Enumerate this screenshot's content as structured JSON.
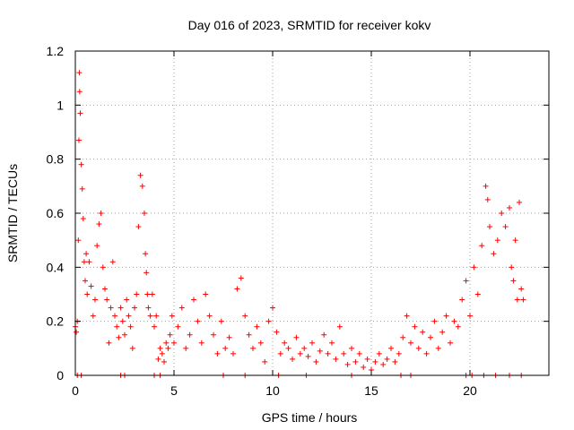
{
  "chart_data": {
    "type": "scatter",
    "title": "Day 016 of 2023, SRMTID for receiver kokv",
    "xlabel": "GPS time / hours",
    "ylabel": "SRMTID / TECUs",
    "xlim": [
      0,
      24
    ],
    "ylim": [
      0,
      1.2
    ],
    "xticks": [
      0,
      5,
      10,
      15,
      20
    ],
    "yticks": [
      0,
      0.2,
      0.4,
      0.6,
      0.8,
      1,
      1.2
    ],
    "ytick_labels": [
      "0",
      "0.2",
      "0.4",
      "0.6",
      "0.8",
      "1",
      "1.2"
    ],
    "grid": true,
    "marker": "+",
    "color": "#ff0000",
    "series": [
      {
        "name": "SRMTID",
        "x": [
          0.0,
          0.05,
          0.1,
          0.15,
          0.18,
          0.2,
          0.22,
          0.25,
          0.3,
          0.35,
          0.4,
          0.45,
          0.5,
          0.55,
          0.6,
          0.7,
          0.8,
          0.9,
          1.0,
          1.1,
          1.2,
          1.3,
          1.4,
          1.5,
          1.6,
          1.7,
          1.8,
          1.9,
          2.0,
          2.1,
          2.2,
          2.3,
          2.4,
          2.5,
          2.6,
          2.7,
          2.8,
          2.9,
          3.0,
          3.1,
          3.2,
          3.3,
          3.4,
          3.5,
          3.55,
          3.6,
          3.65,
          3.7,
          3.8,
          3.9,
          4.0,
          4.1,
          4.2,
          4.3,
          4.4,
          4.5,
          4.6,
          4.7,
          4.8,
          4.9,
          5.0,
          5.2,
          5.4,
          5.6,
          5.8,
          6.0,
          6.2,
          6.4,
          6.6,
          6.8,
          7.0,
          7.2,
          7.4,
          7.6,
          7.8,
          8.0,
          8.2,
          8.4,
          8.6,
          8.8,
          9.0,
          9.2,
          9.4,
          9.6,
          9.8,
          10.0,
          10.2,
          10.4,
          10.6,
          10.8,
          11.0,
          11.2,
          11.4,
          11.6,
          11.8,
          12.0,
          12.2,
          12.4,
          12.6,
          12.8,
          13.0,
          13.2,
          13.4,
          13.6,
          13.8,
          14.0,
          14.2,
          14.4,
          14.6,
          14.8,
          15.0,
          15.2,
          15.4,
          15.6,
          15.8,
          16.0,
          16.2,
          16.4,
          16.6,
          16.8,
          17.0,
          17.2,
          17.4,
          17.6,
          17.8,
          18.0,
          18.2,
          18.4,
          18.6,
          18.8,
          19.0,
          19.2,
          19.4,
          19.6,
          19.8,
          20.0,
          20.2,
          20.4,
          20.6,
          20.8,
          20.9,
          21.0,
          21.2,
          21.4,
          21.6,
          21.8,
          22.0,
          22.1,
          22.2,
          22.3,
          22.4,
          22.5,
          22.6,
          22.7,
          0.1,
          0.3,
          2.3,
          2.5,
          4.0,
          4.3,
          7.5,
          8.6,
          10.3,
          11.7,
          14.0,
          16.5,
          17.0,
          19.8,
          20.1,
          20.7,
          21.3,
          22.0,
          22.6
        ],
        "values": [
          0.18,
          0.16,
          0.2,
          0.5,
          0.87,
          1.12,
          1.05,
          0.97,
          0.78,
          0.69,
          0.58,
          0.42,
          0.35,
          0.45,
          0.3,
          0.42,
          0.33,
          0.22,
          0.28,
          0.48,
          0.56,
          0.6,
          0.4,
          0.32,
          0.28,
          0.12,
          0.25,
          0.42,
          0.22,
          0.18,
          0.14,
          0.25,
          0.2,
          0.15,
          0.28,
          0.22,
          0.18,
          0.1,
          0.25,
          0.3,
          0.55,
          0.74,
          0.7,
          0.6,
          0.45,
          0.38,
          0.3,
          0.25,
          0.22,
          0.3,
          0.18,
          0.22,
          0.06,
          0.1,
          0.08,
          0.05,
          0.12,
          0.1,
          0.15,
          0.22,
          0.12,
          0.18,
          0.25,
          0.1,
          0.15,
          0.28,
          0.2,
          0.12,
          0.3,
          0.22,
          0.15,
          0.08,
          0.2,
          0.1,
          0.14,
          0.08,
          0.32,
          0.36,
          0.22,
          0.15,
          0.1,
          0.18,
          0.12,
          0.05,
          0.2,
          0.25,
          0.16,
          0.08,
          0.12,
          0.1,
          0.06,
          0.14,
          0.08,
          0.1,
          0.07,
          0.12,
          0.05,
          0.09,
          0.15,
          0.08,
          0.12,
          0.06,
          0.18,
          0.08,
          0.04,
          0.1,
          0.05,
          0.08,
          0.03,
          0.06,
          0.02,
          0.05,
          0.08,
          0.04,
          0.06,
          0.1,
          0.05,
          0.08,
          0.14,
          0.22,
          0.12,
          0.18,
          0.1,
          0.16,
          0.08,
          0.14,
          0.2,
          0.1,
          0.16,
          0.22,
          0.12,
          0.2,
          0.18,
          0.28,
          0.35,
          0.22,
          0.4,
          0.3,
          0.48,
          0.7,
          0.65,
          0.55,
          0.45,
          0.5,
          0.6,
          0.55,
          0.62,
          0.4,
          0.35,
          0.5,
          0.28,
          0.64,
          0.32,
          0.28,
          0,
          0,
          0,
          0,
          0,
          0,
          0,
          0,
          0,
          0,
          0,
          0,
          0,
          0,
          0,
          0,
          0,
          0,
          0
        ]
      }
    ]
  }
}
